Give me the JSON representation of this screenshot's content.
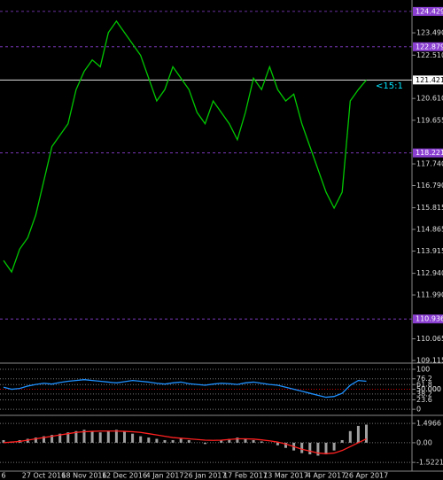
{
  "chart_data": [
    {
      "type": "line",
      "categories": [
        "6",
        null,
        null,
        null,
        null,
        "27 Oct 2016",
        null,
        null,
        null,
        null,
        "18 Nov 2016",
        null,
        null,
        null,
        null,
        "12 Dec 2016",
        null,
        null,
        null,
        null,
        "4 Jan 2017",
        null,
        null,
        null,
        null,
        "26 Jan 2017",
        null,
        null,
        null,
        null,
        "17 Feb 2017",
        null,
        null,
        null,
        null,
        "13 Mar 2017",
        null,
        null,
        null,
        null,
        "4 Apr 2017",
        null,
        null,
        null,
        null,
        "26 Apr 2017"
      ],
      "series": [
        {
          "color": "#00c800",
          "values": [
            113.5,
            113.0,
            114.0,
            114.5,
            115.5,
            117.0,
            118.5,
            119.0,
            119.5,
            121.0,
            121.8,
            122.3,
            122.0,
            123.5,
            124.0,
            123.5,
            123.0,
            122.5,
            121.5,
            120.5,
            121.0,
            122.0,
            121.5,
            121.0,
            120.0,
            119.5,
            120.5,
            120.0,
            119.5,
            118.8,
            120.0,
            121.5,
            121.0,
            122.0,
            121.0,
            120.5,
            120.8,
            119.5,
            118.5,
            117.5,
            116.5,
            115.8,
            116.5,
            120.5,
            121.0,
            121.421
          ]
        }
      ],
      "ylim": [
        109.0,
        124.93
      ],
      "yticks": [
        {
          "value": 123.49,
          "label": "123.490"
        },
        {
          "value": 122.51,
          "label": "122.510"
        },
        {
          "value": 120.61,
          "label": "120.610"
        },
        119.655,
        {
          "value": 117.74,
          "label": "117.740"
        },
        {
          "value": 116.79,
          "label": "116.790"
        },
        115.815,
        114.865,
        113.915,
        {
          "value": 112.94,
          "label": "112.940"
        },
        {
          "value": 111.99,
          "label": "111.990"
        },
        110.065,
        109.115
      ],
      "levels": [
        {
          "value": 124.429,
          "color": "#8a3fd1"
        },
        {
          "value": 122.879,
          "color": "#8a3fd1"
        },
        {
          "value": 121.421,
          "color": "#ffffff"
        },
        {
          "value": 118.221,
          "color": "#8a3fd1"
        },
        {
          "value": 110.936,
          "color": "#8a3fd1"
        }
      ],
      "annotation": "<15:1"
    },
    {
      "type": "line",
      "series": [
        {
          "color": "#1e90ff",
          "values": [
            55,
            50,
            52,
            58,
            62,
            65,
            63,
            67,
            70,
            72,
            74,
            72,
            70,
            68,
            66,
            69,
            72,
            70,
            68,
            65,
            63,
            66,
            68,
            64,
            62,
            60,
            63,
            65,
            64,
            62,
            66,
            68,
            65,
            62,
            60,
            55,
            50,
            45,
            40,
            35,
            30,
            32,
            40,
            60,
            72,
            70
          ]
        }
      ],
      "ylim": [
        -13,
        111
      ],
      "yticks": [
        100,
        76.2,
        61.8,
        {
          "value": 50,
          "label": "50.000"
        },
        38.2,
        23.6,
        0
      ],
      "grid": true
    },
    {
      "type": "line",
      "series": [
        {
          "color": "#a0a0a0",
          "style": "bar",
          "values": [
            0.2,
            0.1,
            0.2,
            0.3,
            0.4,
            0.5,
            0.6,
            0.7,
            0.8,
            0.9,
            1.0,
            0.9,
            0.8,
            0.9,
            1.0,
            0.9,
            0.7,
            0.5,
            0.4,
            0.3,
            0.2,
            0.2,
            0.3,
            0.2,
            0.0,
            -0.1,
            0.0,
            0.2,
            0.3,
            0.4,
            0.3,
            0.2,
            0.1,
            0.0,
            -0.2,
            -0.4,
            -0.6,
            -0.8,
            -0.9,
            -1.0,
            -0.9,
            -0.6,
            0.2,
            0.9,
            1.3,
            1.4
          ]
        },
        {
          "color": "#ff2020",
          "style": "line",
          "values": [
            0.0,
            0.05,
            0.1,
            0.2,
            0.3,
            0.4,
            0.5,
            0.6,
            0.7,
            0.8,
            0.85,
            0.88,
            0.9,
            0.9,
            0.9,
            0.88,
            0.85,
            0.8,
            0.7,
            0.6,
            0.5,
            0.4,
            0.35,
            0.3,
            0.25,
            0.2,
            0.18,
            0.2,
            0.25,
            0.3,
            0.3,
            0.28,
            0.22,
            0.15,
            0.05,
            -0.1,
            -0.3,
            -0.5,
            -0.65,
            -0.8,
            -0.85,
            -0.8,
            -0.6,
            -0.3,
            0.0,
            0.3
          ]
        }
      ],
      "ylim": [
        -2.2,
        2.05
      ],
      "yticks": [
        1.4966,
        {
          "value": 0,
          "label": "0.00"
        },
        -1.5221
      ],
      "grid": true
    }
  ]
}
